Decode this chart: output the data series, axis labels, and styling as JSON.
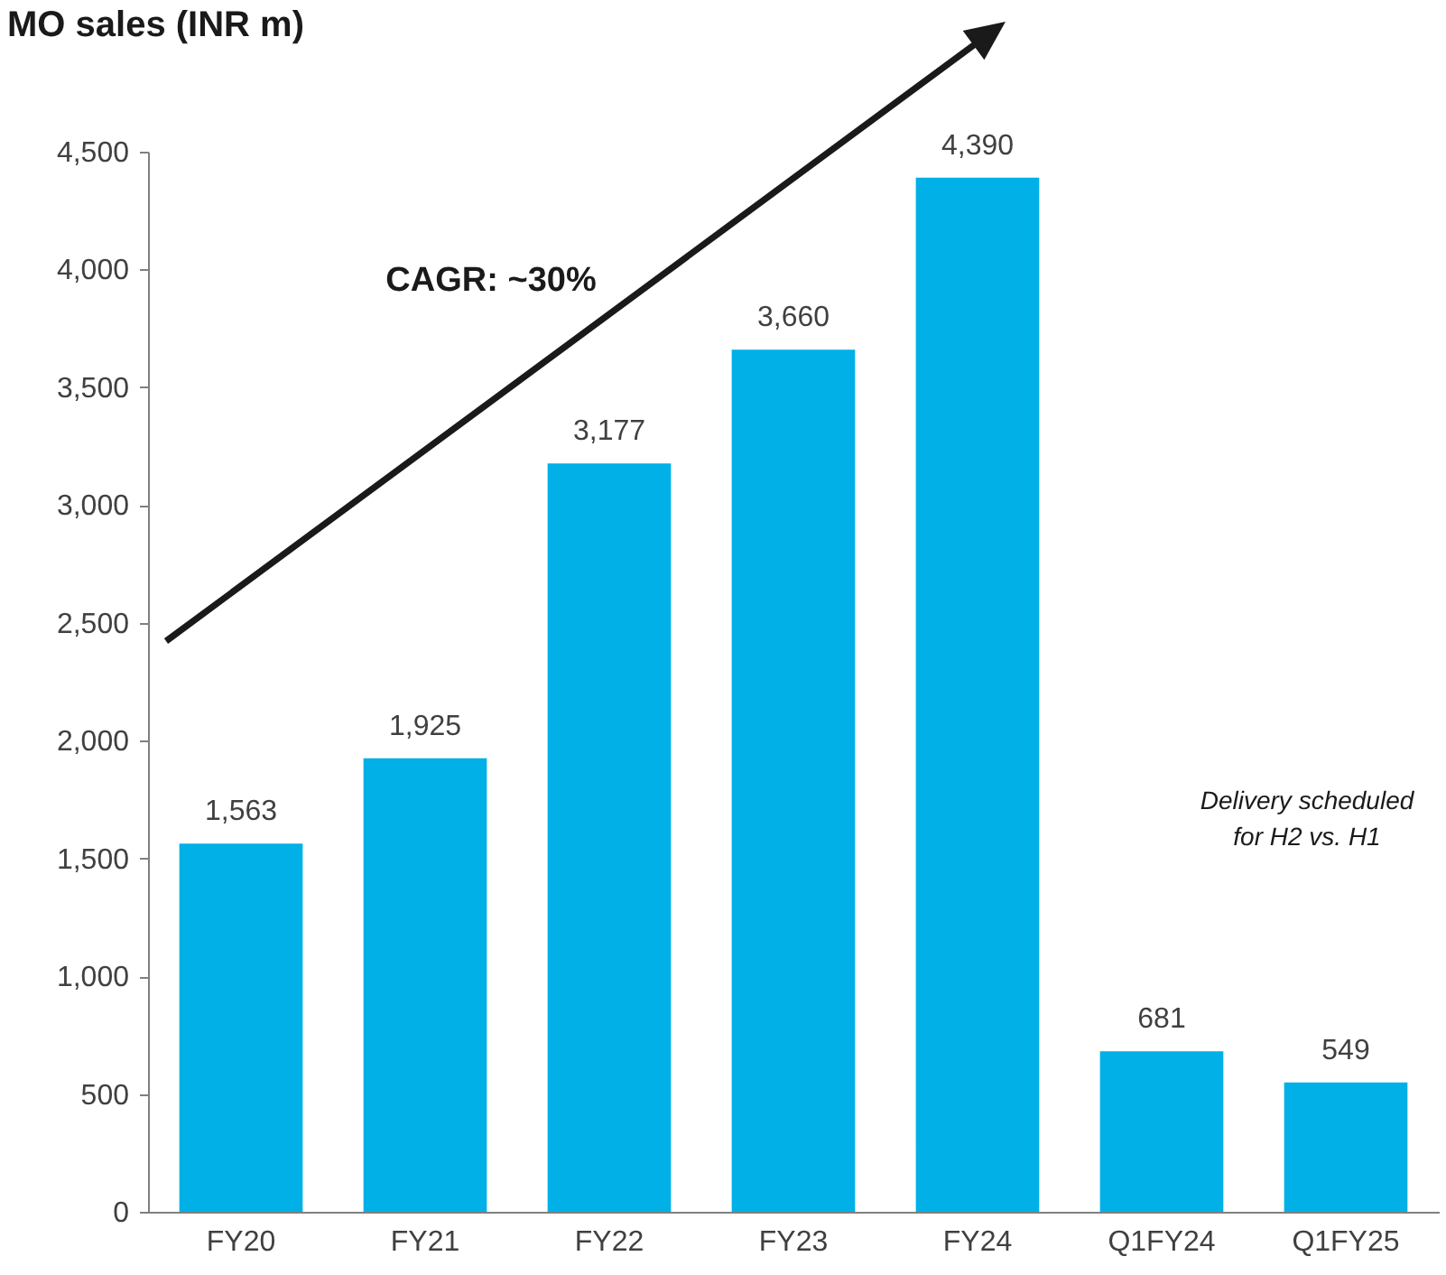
{
  "chart_data": {
    "type": "bar",
    "title": "MO sales (INR m)",
    "categories": [
      "FY20",
      "FY21",
      "FY22",
      "FY23",
      "FY24",
      "Q1FY24",
      "Q1FY25"
    ],
    "values": [
      1563,
      1925,
      3177,
      3660,
      4390,
      681,
      549
    ],
    "value_labels": [
      "1,563",
      "1,925",
      "3,177",
      "3,660",
      "4,390",
      "681",
      "549"
    ],
    "color": "#00b0e6",
    "ylim": [
      0,
      4500
    ],
    "yticks": [
      0,
      500,
      {
        "value": 1000,
        "label": "1,000"
      },
      {
        "value": 1500,
        "label": "1,500"
      },
      {
        "value": 2000,
        "label": "2,000"
      },
      {
        "value": 2500,
        "label": "2,500"
      },
      {
        "value": 3000,
        "label": "3,000"
      },
      {
        "value": 3500,
        "label": "3,500"
      },
      {
        "value": 4000,
        "label": "4,000"
      },
      {
        "value": 4500,
        "label": "4,500"
      }
    ],
    "grid": false,
    "annotations": [
      "CAGR: ~30%",
      "Delivery scheduled\nfor H2 vs. H1"
    ]
  }
}
